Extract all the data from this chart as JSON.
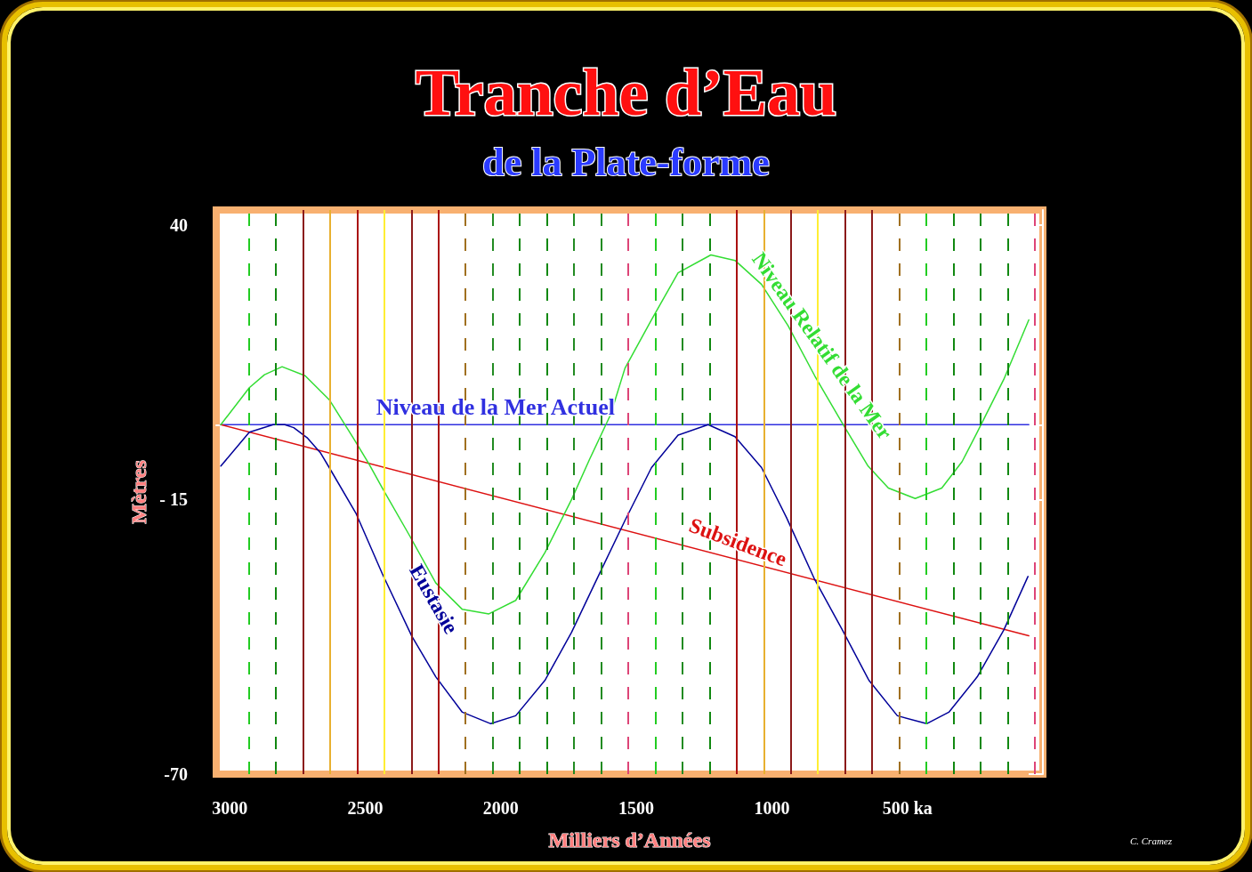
{
  "chart_data": {
    "type": "line",
    "title": "Tranche d’Eau",
    "subtitle": "de la Plate-forme",
    "xlabel": "Milliers d’Années",
    "ylabel": "Mètres",
    "annotations": [
      "C. Cramez"
    ],
    "xlim": [
      3050,
      0
    ],
    "xticks": [
      3000,
      2500,
      2000,
      1500,
      1000,
      {
        "value": 500,
        "label": "500 ka"
      }
    ],
    "ylim": [
      -70,
      43
    ],
    "yticks": [
      -70,
      {
        "value": -15,
        "label": "- 15"
      },
      40
    ],
    "grid": false,
    "legend": false,
    "marker": "none",
    "line_style": "solid",
    "series": [
      {
        "name": "Niveau de la Mer Actuel",
        "color": "#3030e0",
        "x": [
          3033,
          52
        ],
        "values": [
          0,
          0
        ]
      },
      {
        "name": "Subsidence",
        "color": "#dd1111",
        "x": [
          3033,
          52
        ],
        "values": [
          0,
          -42.3
        ]
      },
      {
        "name": "Eustasie",
        "color": "#000099",
        "x": [
          3033,
          2928,
          2840,
          2797,
          2764,
          2715,
          2666,
          2633,
          2535,
          2437,
          2329,
          2240,
          2142,
          2037,
          1945,
          1837,
          1739,
          1641,
          1542,
          1444,
          1346,
          1235,
          1136,
          1038,
          946,
          842,
          740,
          642,
          537,
          429,
          347,
          242,
          144,
          55
        ],
        "values": [
          -8.3,
          -1.5,
          0,
          0,
          -0.6,
          -2.6,
          -5.6,
          -8.6,
          -17.7,
          -29.9,
          -42.3,
          -50.5,
          -57.6,
          -59.9,
          -58.3,
          -51.2,
          -41.6,
          -30.4,
          -19.2,
          -8.6,
          -2.1,
          0,
          -2.4,
          -8.6,
          -18.6,
          -31,
          -41.1,
          -51.2,
          -58.3,
          -59.9,
          -57.6,
          -50.5,
          -41.1,
          -30.4
        ]
      },
      {
        "name": "Niveau Relatif de la Mer",
        "color": "#33dd33",
        "x": [
          3033,
          2928,
          2872,
          2807,
          2722,
          2633,
          2545,
          2486,
          2437,
          2338,
          2240,
          2142,
          2044,
          1945,
          1837,
          1739,
          1673,
          1595,
          1542,
          1444,
          1346,
          1225,
          1136,
          1038,
          940,
          842,
          740,
          645,
          570,
          471,
          373,
          298,
          242,
          144,
          52
        ],
        "values": [
          0,
          7.4,
          10,
          11.6,
          9.8,
          5,
          -2.6,
          -7.9,
          -12.7,
          -22.1,
          -31.7,
          -37,
          -37.9,
          -35.2,
          -25.6,
          -15,
          -7,
          2,
          11.3,
          21,
          30.4,
          34,
          32.9,
          28.1,
          19.8,
          9.8,
          0.3,
          -8.3,
          -12.7,
          -14.8,
          -12.7,
          -7.4,
          -1.5,
          9.1,
          21
        ]
      }
    ],
    "ref_lines": [
      {
        "axis": "x",
        "value": 2930,
        "color": "#22cc22",
        "line_style": "dashed"
      },
      {
        "axis": "x",
        "value": 2830,
        "color": "#118811",
        "line_style": "dashed"
      },
      {
        "axis": "x",
        "value": 2730,
        "color": "#8b1a1a",
        "line_style": "solid"
      },
      {
        "axis": "x",
        "value": 2630,
        "color": "#e8b030",
        "line_style": "solid"
      },
      {
        "axis": "x",
        "value": 2530,
        "color": "#aa1111",
        "line_style": "solid"
      },
      {
        "axis": "x",
        "value": 2430,
        "color": "#ffee33",
        "line_style": "solid"
      },
      {
        "axis": "x",
        "value": 2330,
        "color": "#8b1a1a",
        "line_style": "solid"
      },
      {
        "axis": "x",
        "value": 2230,
        "color": "#aa1111",
        "line_style": "solid"
      },
      {
        "axis": "x",
        "value": 2130,
        "color": "#a07020",
        "line_style": "dashed"
      },
      {
        "axis": "x",
        "value": 2030,
        "color": "#228b22",
        "line_style": "dashed"
      },
      {
        "axis": "x",
        "value": 1930,
        "color": "#118811",
        "line_style": "dashed"
      },
      {
        "axis": "x",
        "value": 1830,
        "color": "#118811",
        "line_style": "dashed"
      },
      {
        "axis": "x",
        "value": 1730,
        "color": "#228b22",
        "line_style": "dashed"
      },
      {
        "axis": "x",
        "value": 1630,
        "color": "#228b22",
        "line_style": "dashed"
      },
      {
        "axis": "x",
        "value": 1530,
        "color": "#dd4477",
        "line_style": "dashed"
      },
      {
        "axis": "x",
        "value": 1430,
        "color": "#22cc22",
        "line_style": "dashed"
      },
      {
        "axis": "x",
        "value": 1330,
        "color": "#228b22",
        "line_style": "dashed"
      },
      {
        "axis": "x",
        "value": 1230,
        "color": "#118811",
        "line_style": "dashed"
      },
      {
        "axis": "x",
        "value": 1130,
        "color": "#aa1111",
        "line_style": "solid"
      },
      {
        "axis": "x",
        "value": 1030,
        "color": "#e8b030",
        "line_style": "solid"
      },
      {
        "axis": "x",
        "value": 930,
        "color": "#8b1a1a",
        "line_style": "solid"
      },
      {
        "axis": "x",
        "value": 830,
        "color": "#ffee33",
        "line_style": "solid"
      },
      {
        "axis": "x",
        "value": 730,
        "color": "#8b1a1a",
        "line_style": "solid"
      },
      {
        "axis": "x",
        "value": 630,
        "color": "#8b1a1a",
        "line_style": "solid"
      },
      {
        "axis": "x",
        "value": 530,
        "color": "#a07020",
        "line_style": "dashed"
      },
      {
        "axis": "x",
        "value": 430,
        "color": "#22cc22",
        "line_style": "dashed"
      },
      {
        "axis": "x",
        "value": 330,
        "color": "#118811",
        "line_style": "dashed"
      },
      {
        "axis": "x",
        "value": 230,
        "color": "#118811",
        "line_style": "dashed"
      },
      {
        "axis": "x",
        "value": 130,
        "color": "#118811",
        "line_style": "dashed"
      },
      {
        "axis": "x",
        "value": 30,
        "color": "#dd4477",
        "line_style": "dashed"
      }
    ]
  }
}
